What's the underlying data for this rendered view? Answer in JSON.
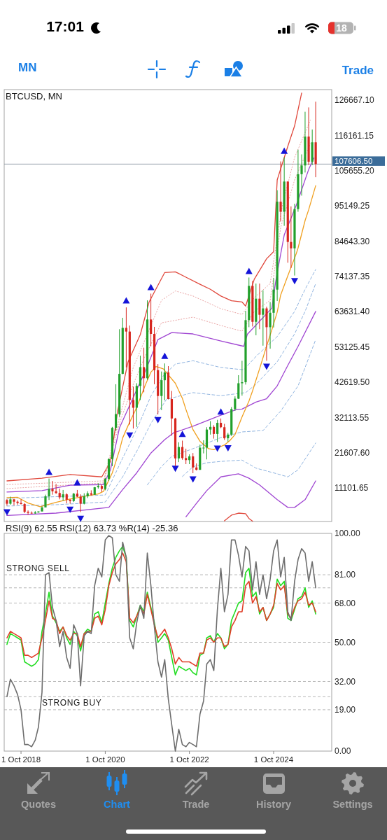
{
  "chart_data": [
    {
      "type": "other",
      "annotations": [
        "17:01",
        "18",
        "MN",
        "Trade"
      ]
    },
    {
      "type": "candlestick",
      "title": "BTCUSD, MN",
      "x": [
        "2018-06",
        "2018-07",
        "2018-08",
        "2018-09",
        "2018-10",
        "2018-11",
        "2018-12",
        "2019-01",
        "2019-02",
        "2019-03",
        "2019-04",
        "2019-05",
        "2019-06",
        "2019-07",
        "2019-08",
        "2019-09",
        "2019-10",
        "2019-11",
        "2019-12",
        "2020-01",
        "2020-02",
        "2020-03",
        "2020-04",
        "2020-05",
        "2020-06",
        "2020-07",
        "2020-08",
        "2020-09",
        "2020-10",
        "2020-11",
        "2020-12",
        "2021-01",
        "2021-02",
        "2021-03",
        "2021-04",
        "2021-05",
        "2021-06",
        "2021-07",
        "2021-08",
        "2021-09",
        "2021-10",
        "2021-11",
        "2021-12",
        "2022-01",
        "2022-02",
        "2022-03",
        "2022-04",
        "2022-05",
        "2022-06",
        "2022-07",
        "2022-08",
        "2022-09",
        "2022-10",
        "2022-11",
        "2022-12",
        "2023-01",
        "2023-02",
        "2023-03",
        "2023-04",
        "2023-05",
        "2023-06",
        "2023-07",
        "2023-08",
        "2023-09",
        "2023-10",
        "2023-11",
        "2023-12",
        "2024-01",
        "2024-02",
        "2024-03",
        "2024-04",
        "2024-05",
        "2024-06",
        "2024-07",
        "2024-08",
        "2024-09",
        "2024-10",
        "2024-11",
        "2024-12",
        "2025-01",
        "2025-02",
        "2025-03",
        "2025-04",
        "2025-05",
        "2025-06",
        "2025-07",
        "2025-08",
        "2025-09",
        "2025-10"
      ],
      "ohlc": [
        [
          7500,
          7800,
          5800,
          6400
        ],
        [
          6400,
          8500,
          6100,
          7700
        ],
        [
          7700,
          7800,
          5900,
          7000
        ],
        [
          7000,
          7400,
          6100,
          6600
        ],
        [
          6600,
          7700,
          6200,
          6300
        ],
        [
          6300,
          6600,
          3600,
          4000
        ],
        [
          4000,
          4400,
          3100,
          3700
        ],
        [
          3700,
          4100,
          3400,
          3500
        ],
        [
          3500,
          4200,
          3400,
          3800
        ],
        [
          3800,
          4100,
          3700,
          4100
        ],
        [
          4100,
          5600,
          4100,
          5300
        ],
        [
          5300,
          9100,
          5300,
          8600
        ],
        [
          8600,
          13900,
          7500,
          10800
        ],
        [
          10800,
          13200,
          9100,
          10100
        ],
        [
          10100,
          12300,
          9300,
          9600
        ],
        [
          9600,
          10900,
          7700,
          8300
        ],
        [
          8300,
          10500,
          7300,
          9200
        ],
        [
          9200,
          9500,
          6500,
          7600
        ],
        [
          7600,
          7700,
          6400,
          7200
        ],
        [
          7200,
          9600,
          6900,
          9400
        ],
        [
          9400,
          10500,
          8400,
          8500
        ],
        [
          8500,
          9200,
          3900,
          6400
        ],
        [
          6400,
          9500,
          6200,
          8600
        ],
        [
          8600,
          10100,
          8100,
          9500
        ],
        [
          9500,
          10400,
          8800,
          9100
        ],
        [
          9100,
          11400,
          9000,
          11300
        ],
        [
          11300,
          12500,
          10900,
          11700
        ],
        [
          11700,
          12100,
          9900,
          10800
        ],
        [
          10800,
          14100,
          10400,
          13800
        ],
        [
          13800,
          19900,
          13200,
          19700
        ],
        [
          19700,
          29300,
          17600,
          29000
        ],
        [
          29000,
          42000,
          28100,
          33100
        ],
        [
          33100,
          58400,
          32300,
          45100
        ],
        [
          45100,
          61800,
          45000,
          58800
        ],
        [
          58800,
          64900,
          47000,
          57700
        ],
        [
          57700,
          59500,
          30000,
          37300
        ],
        [
          37300,
          41300,
          28800,
          35000
        ],
        [
          35000,
          42300,
          29300,
          41500
        ],
        [
          41500,
          50500,
          37300,
          47100
        ],
        [
          47100,
          52900,
          39600,
          43800
        ],
        [
          43800,
          67000,
          43300,
          61300
        ],
        [
          61300,
          69000,
          53300,
          57000
        ],
        [
          57000,
          59100,
          42000,
          46200
        ],
        [
          46200,
          48000,
          33000,
          38500
        ],
        [
          38500,
          45800,
          34300,
          43200
        ],
        [
          43200,
          48200,
          37200,
          45500
        ],
        [
          45500,
          47400,
          37500,
          37600
        ],
        [
          37600,
          40000,
          26700,
          31800
        ],
        [
          31800,
          32000,
          17600,
          19900
        ],
        [
          19900,
          24700,
          18800,
          23300
        ],
        [
          23300,
          25200,
          19500,
          20000
        ],
        [
          20000,
          22800,
          18200,
          19400
        ],
        [
          19400,
          21100,
          18200,
          20500
        ],
        [
          20500,
          21500,
          15500,
          17200
        ],
        [
          17200,
          18400,
          16300,
          16500
        ],
        [
          16500,
          24000,
          16500,
          23100
        ],
        [
          23100,
          25300,
          21400,
          23100
        ],
        [
          23100,
          29200,
          19600,
          28500
        ],
        [
          28500,
          31000,
          27000,
          29300
        ],
        [
          29300,
          29800,
          25800,
          27200
        ],
        [
          27200,
          31400,
          24800,
          30500
        ],
        [
          30500,
          31800,
          28900,
          29200
        ],
        [
          29200,
          30200,
          25400,
          25900
        ],
        [
          25900,
          27500,
          24900,
          27000
        ],
        [
          27000,
          35200,
          26600,
          34600
        ],
        [
          34600,
          38400,
          34100,
          37700
        ],
        [
          37700,
          44700,
          37600,
          42300
        ],
        [
          42300,
          49000,
          38600,
          42600
        ],
        [
          42600,
          63900,
          41900,
          61100
        ],
        [
          61100,
          73800,
          59000,
          71300
        ],
        [
          71300,
          72800,
          59200,
          60600
        ],
        [
          60600,
          72000,
          56600,
          67500
        ],
        [
          67500,
          72000,
          58400,
          62700
        ],
        [
          62700,
          70000,
          53500,
          64600
        ],
        [
          64600,
          65100,
          49000,
          59000
        ],
        [
          59000,
          66500,
          52600,
          63300
        ],
        [
          63300,
          73600,
          58900,
          70200
        ],
        [
          70200,
          99800,
          66800,
          96400
        ],
        [
          96400,
          108400,
          90500,
          93400
        ],
        [
          93400,
          109600,
          89200,
          102400
        ],
        [
          102400,
          102500,
          78200,
          84400
        ],
        [
          84400,
          95000,
          76600,
          82500
        ],
        [
          82500,
          95800,
          74400,
          94200
        ],
        [
          94200,
          111900,
          93400,
          104600
        ],
        [
          104600,
          110500,
          98200,
          107200
        ],
        [
          107200,
          123200,
          105100,
          115800
        ],
        [
          115800,
          124500,
          107300,
          108300
        ],
        [
          108300,
          117900,
          107300,
          114100
        ],
        [
          114100,
          126200,
          103700,
          107606.5
        ]
      ],
      "colors": [
        "#d7261e",
        "#22a02c",
        "#d7261e",
        "#d7261e",
        "#d7261e",
        "#d7261e",
        "#d7261e",
        "#d7261e",
        "#22a02c",
        "#22a02c",
        "#22a02c",
        "#22a02c",
        "#22a02c",
        "#d7261e",
        "#d7261e",
        "#d7261e",
        "#22a02c",
        "#d7261e",
        "#d7261e",
        "#22a02c",
        "#d7261e",
        "#d7261e",
        "#22a02c",
        "#22a02c",
        "#d7261e",
        "#22a02c",
        "#22a02c",
        "#d7261e",
        "#22a02c",
        "#22a02c",
        "#22a02c",
        "#22a02c",
        "#22a02c",
        "#22a02c",
        "#d7261e",
        "#d7261e",
        "#d7261e",
        "#22a02c",
        "#22a02c",
        "#d7261e",
        "#22a02c",
        "#d7261e",
        "#d7261e",
        "#d7261e",
        "#22a02c",
        "#22a02c",
        "#d7261e",
        "#d7261e",
        "#d7261e",
        "#22a02c",
        "#d7261e",
        "#d7261e",
        "#22a02c",
        "#d7261e",
        "#d7261e",
        "#22a02c",
        "#22a02c",
        "#22a02c",
        "#22a02c",
        "#d7261e",
        "#22a02c",
        "#d7261e",
        "#d7261e",
        "#22a02c",
        "#22a02c",
        "#22a02c",
        "#22a02c",
        "#22a02c",
        "#22a02c",
        "#22a02c",
        "#d7261e",
        "#22a02c",
        "#d7261e",
        "#22a02c",
        "#d7261e",
        "#22a02c",
        "#22a02c",
        "#22a02c",
        "#d7261e",
        "#22a02c",
        "#d7261e",
        "#d7261e",
        "#22a02c",
        "#22a02c",
        "#22a02c",
        "#22a02c",
        "#d7261e",
        "#22a02c",
        "#d7261e"
      ],
      "series": [
        {
          "type": "line",
          "color": "#e0483c",
          "x": [
            "2018-06",
            "2019-04",
            "2019-12",
            "2020-09",
            "2020-11-16",
            "2021-01-16",
            "2021-04-16",
            "2021-08",
            "2021-10-16",
            "2022-03",
            "2022-06",
            "2022-09",
            "2023-01",
            "2023-04",
            "2023-07",
            "2023-10",
            "2024-01",
            "2024-02",
            "2024-04-16",
            "2024-08",
            "2024-10",
            "2024-11",
            "2025-02",
            "2025-04",
            "2025-06"
          ],
          "values": [
            13200,
            14000,
            15100,
            14400,
            19000,
            34000,
            48600,
            56800,
            66500,
            75300,
            75500,
            73900,
            71800,
            70300,
            68300,
            66900,
            66500,
            65300,
            73300,
            79400,
            81500,
            102900,
            112900,
            119000,
            128800
          ]
        },
        {
          "type": "line",
          "color": "#eaa4a4",
          "line_style": "dotted",
          "x": [
            "2018-06",
            "2020-09-16",
            "2021-02",
            "2021-06",
            "2021-09-16",
            "2022-02",
            "2022-06",
            "2022-11",
            "2023-07",
            "2024-01",
            "2024-04-16",
            "2024-09",
            "2024-12-16",
            "2025-04",
            "2025-08-16"
          ],
          "values": [
            12100,
            13200,
            32000,
            47000,
            55700,
            67000,
            69800,
            68300,
            64500,
            62800,
            67800,
            72000,
            95400,
            109600,
            120700
          ]
        },
        {
          "type": "line",
          "color": "#eaa4a4",
          "line_style": "dotted",
          "x": [
            "2018-06",
            "2020-09-16",
            "2021-02",
            "2021-06",
            "2021-09-16",
            "2022-02",
            "2022-11",
            "2023-07",
            "2024-01",
            "2024-04-16",
            "2024-09",
            "2024-12",
            "2025-04",
            "2025-08-16"
          ],
          "values": [
            10900,
            12600,
            30300,
            42000,
            50700,
            60300,
            62000,
            59500,
            57800,
            63700,
            67000,
            88700,
            102900,
            113700
          ]
        },
        {
          "type": "line",
          "color": "#a046d2",
          "x": [
            "2018-06",
            "2019-04",
            "2019-12",
            "2020-09-16",
            "2020-11-16",
            "2021-02",
            "2021-06-16",
            "2021-09-16",
            "2022-01",
            "2022-05",
            "2022-11",
            "2023-07",
            "2024-01-16",
            "2024-02-16",
            "2024-09-16",
            "2024-10-16",
            "2024-11-16",
            "2025-01",
            "2025-04-16",
            "2025-08",
            "2025-09-16"
          ],
          "values": [
            9900,
            10300,
            11900,
            12100,
            16600,
            29000,
            39200,
            46100,
            55300,
            57400,
            57000,
            54900,
            53300,
            56900,
            64700,
            72000,
            78000,
            86500,
            95400,
            106000,
            109400
          ]
        },
        {
          "type": "line",
          "color": "#90b4e0",
          "line_style": "dashed",
          "x": [
            "2018-06",
            "2019-08",
            "2020-10",
            "2021-03",
            "2021-07-16",
            "2021-11",
            "2022-02-16",
            "2022-06",
            "2022-11",
            "2023-07",
            "2024-01-16",
            "2024-05",
            "2024-11",
            "2025-04",
            "2025-07",
            "2025-10"
          ],
          "values": [
            8000,
            8500,
            9000,
            20000,
            29700,
            38500,
            44500,
            48000,
            49000,
            47000,
            46300,
            50300,
            56200,
            63700,
            70300,
            76200
          ]
        },
        {
          "type": "line",
          "color": "#90b4e0",
          "line_style": "dashed",
          "x": [
            "2018-06",
            "2019-08",
            "2020-10",
            "2021-03",
            "2021-07",
            "2021-11",
            "2022-03-16",
            "2022-11",
            "2023-07",
            "2024-02",
            "2024-05",
            "2024-11",
            "2025-04",
            "2025-07",
            "2025-10"
          ],
          "values": [
            5700,
            6100,
            6900,
            14400,
            22000,
            30300,
            37500,
            39500,
            38600,
            39500,
            42000,
            48700,
            57000,
            63700,
            72000
          ]
        },
        {
          "type": "line",
          "color": "#a046d2",
          "x": [
            "2018-06",
            "2019-08",
            "2020-11",
            "2021-03",
            "2021-07",
            "2021-11",
            "2022-03",
            "2022-05-16",
            "2022-11",
            "2023-07",
            "2023-11-16",
            "2024-01",
            "2024-05",
            "2024-08",
            "2024-11",
            "2025-02",
            "2025-05",
            "2025-10"
          ],
          "values": [
            2900,
            3600,
            5300,
            10600,
            15600,
            21500,
            25500,
            27500,
            29500,
            32800,
            34500,
            34600,
            36700,
            37700,
            41500,
            47600,
            53300,
            63700
          ]
        },
        {
          "type": "line",
          "color": "#90b4e0",
          "line_style": "dashed",
          "x": [
            "2021-10",
            "2022-02",
            "2022-05",
            "2022-11",
            "2023-07",
            "2024-01",
            "2024-07",
            "2024-12",
            "2025-05",
            "2025-10"
          ],
          "values": [
            12000,
            17500,
            20500,
            22800,
            26100,
            27800,
            28200,
            34000,
            41500,
            55300
          ]
        },
        {
          "type": "line",
          "color": "#90b4e0",
          "line_style": "dashed",
          "x": [
            "2022-08",
            "2022-11",
            "2023-03",
            "2023-07",
            "2024-01",
            "2024-05",
            "2024-11",
            "2025-02",
            "2025-05",
            "2025-10"
          ],
          "values": [
            14500,
            17400,
            18600,
            19000,
            19400,
            17000,
            15300,
            14400,
            16500,
            24500
          ]
        },
        {
          "type": "line",
          "color": "#a046d2",
          "x": [
            "2022-09",
            "2022-12",
            "2023-03",
            "2023-07",
            "2023-12",
            "2024-03",
            "2024-06",
            "2024-11",
            "2025-02",
            "2025-04",
            "2025-07",
            "2025-10"
          ],
          "values": [
            2500,
            6500,
            10300,
            14400,
            15300,
            14000,
            12000,
            7600,
            5300,
            5300,
            7600,
            13200
          ]
        },
        {
          "type": "line",
          "color": "#e0483c",
          "x": [
            "2023-08",
            "2023-10",
            "2023-12",
            "2024-02",
            "2024-03",
            "2024-04"
          ],
          "values": [
            1300,
            3000,
            3600,
            3400,
            2000,
            1200
          ]
        },
        {
          "type": "line",
          "color": "#f0a020",
          "x": [
            "2018-06",
            "2018-09",
            "2018-12",
            "2019-03-16",
            "2019-08",
            "2019-11-16",
            "2020-04-16",
            "2020-08",
            "2020-09-16",
            "2020-12",
            "2021-02",
            "2021-03",
            "2021-04-16",
            "2021-06-16",
            "2021-07-16",
            "2021-09-16",
            "2021-11",
            "2021-12-16",
            "2022-02-16",
            "2022-06",
            "2022-08",
            "2022-09",
            "2022-11",
            "2023-01",
            "2023-03-16",
            "2023-05",
            "2023-06",
            "2023-08",
            "2023-09-16",
            "2023-11",
            "2024-01",
            "2024-03",
            "2024-04",
            "2024-06",
            "2024-07-16",
            "2024-09-16",
            "2024-11",
            "2024-12",
            "2025-02",
            "2025-04-16",
            "2025-05",
            "2025-07",
            "2025-08",
            "2025-10"
          ],
          "values": [
            8200,
            8300,
            6600,
            5500,
            6800,
            7700,
            8700,
            9300,
            10100,
            15600,
            22300,
            26000,
            29600,
            34000,
            36500,
            42000,
            45600,
            47300,
            46600,
            42300,
            37800,
            34500,
            28500,
            25000,
            22800,
            22500,
            23000,
            23900,
            25200,
            27000,
            32300,
            37000,
            40000,
            46600,
            51600,
            58300,
            63500,
            68600,
            74300,
            81000,
            82600,
            90800,
            94000,
            101200
          ]
        },
        {
          "type": "scatter",
          "color": "#1414d8",
          "marker": "triangle",
          "x": [
            "2019-06",
            "2020-02",
            "2021-04",
            "2021-11",
            "2022-03",
            "2022-08",
            "2023-07",
            "2024-03",
            "2025-01"
          ],
          "values": [
            15900,
            12800,
            67000,
            71000,
            50500,
            27200,
            33900,
            75800,
            111600
          ]
        },
        {
          "type": "scatter",
          "color": "#1414d8",
          "marker": "triangle",
          "x": [
            "2018-06",
            "2019-12",
            "2020-03",
            "2021-05",
            "2022-01",
            "2022-06",
            "2022-11",
            "2023-06",
            "2023-09",
            "2024-08",
            "2025-04"
          ],
          "values": [
            3800,
            4600,
            1900,
            26700,
            31300,
            16800,
            13600,
            22800,
            22900,
            47200,
            72700
          ]
        }
      ],
      "xlim": [
        "2018-05-08",
        "2026-02-17"
      ],
      "ylim": [
        1100,
        129800
      ],
      "yticks": [
        {
          "value": 11101.65,
          "label": "11101.65"
        },
        {
          "value": 21607.6,
          "label": "21607.60"
        },
        {
          "value": 32113.55,
          "label": "32113.55"
        },
        {
          "value": 42619.5,
          "label": "42619.50"
        },
        {
          "value": 53125.45,
          "label": "53125.45"
        },
        {
          "value": 63631.4,
          "label": "63631.40"
        },
        {
          "value": 74137.35,
          "label": "74137.35"
        },
        {
          "value": 84643.3,
          "label": "84643.30"
        },
        {
          "value": 95149.25,
          "label": "95149.25"
        },
        {
          "value": 105655.2,
          "label": "105655.20"
        },
        {
          "value": 116161.15,
          "label": "116161.15"
        },
        {
          "value": 126667.1,
          "label": "126667.10"
        }
      ],
      "tick_labels": "y",
      "ref_lines": [
        {
          "axis": "y",
          "value": 107606.5,
          "label": "107606.50",
          "color": "#8f9ba6"
        }
      ]
    },
    {
      "type": "line",
      "title": "RSI(9) 62.55 RSI(12) 63.73 %R(14) -25.36",
      "x": [
        "2018-06",
        "2018-07",
        "2018-08",
        "2018-09",
        "2018-10",
        "2018-11",
        "2018-12",
        "2019-01",
        "2019-02",
        "2019-03",
        "2019-04",
        "2019-05",
        "2019-06",
        "2019-07",
        "2019-08",
        "2019-09",
        "2019-10",
        "2019-11",
        "2019-12",
        "2020-01",
        "2020-02",
        "2020-03",
        "2020-04",
        "2020-05",
        "2020-06",
        "2020-07",
        "2020-08",
        "2020-09",
        "2020-10",
        "2020-11",
        "2020-12",
        "2021-01",
        "2021-02",
        "2021-03",
        "2021-04",
        "2021-05",
        "2021-06",
        "2021-07",
        "2021-08",
        "2021-09",
        "2021-10",
        "2021-11",
        "2021-12",
        "2022-01",
        "2022-02",
        "2022-03",
        "2022-04",
        "2022-05",
        "2022-06",
        "2022-07",
        "2022-08",
        "2022-09",
        "2022-10",
        "2022-11",
        "2022-12",
        "2023-01",
        "2023-02",
        "2023-03",
        "2023-04",
        "2023-05",
        "2023-06",
        "2023-07",
        "2023-08",
        "2023-09",
        "2023-10",
        "2023-11",
        "2023-12",
        "2024-01",
        "2024-02",
        "2024-03",
        "2024-04",
        "2024-05",
        "2024-06",
        "2024-07",
        "2024-08",
        "2024-09",
        "2024-10",
        "2024-11",
        "2024-12",
        "2025-01",
        "2025-02",
        "2025-03",
        "2025-04",
        "2025-05",
        "2025-06",
        "2025-07",
        "2025-08",
        "2025-09",
        "2025-10"
      ],
      "series": [
        {
          "color": "#22dd22",
          "values": [
            49,
            54,
            53,
            52,
            51,
            41,
            40,
            39,
            40,
            42,
            55,
            63,
            73,
            62,
            59,
            55,
            57,
            52,
            49,
            55,
            53,
            46,
            54,
            56,
            55,
            63,
            64,
            59,
            68,
            77,
            84,
            89,
            92,
            94,
            89,
            60,
            57,
            62,
            67,
            64,
            73,
            66,
            59,
            50,
            52,
            54,
            51,
            43,
            35,
            39,
            38,
            37,
            38,
            36,
            35,
            44,
            45,
            52,
            53,
            50,
            54,
            52,
            47,
            49,
            60,
            64,
            68,
            69,
            82,
            84,
            71,
            73,
            63,
            66,
            60,
            63,
            66,
            79,
            76,
            78,
            61,
            60,
            65,
            70,
            71,
            75,
            66,
            69,
            63
          ]
        },
        {
          "color": "#e0402a",
          "values": [
            52,
            55,
            54,
            53,
            52,
            44,
            44,
            43,
            44,
            45,
            52,
            60,
            69,
            61,
            60,
            54,
            57,
            53,
            51,
            54,
            54,
            48,
            54,
            55,
            55,
            61,
            62,
            58,
            65,
            76,
            82,
            86,
            88,
            91,
            87,
            61,
            59,
            62,
            66,
            63,
            72,
            65,
            58,
            52,
            54,
            56,
            52,
            47,
            40,
            43,
            41,
            41,
            41,
            40,
            39,
            45,
            45,
            51,
            52,
            50,
            52,
            52,
            48,
            49,
            57,
            60,
            64,
            64,
            76,
            78,
            68,
            71,
            64,
            66,
            60,
            63,
            67,
            77,
            74,
            76,
            63,
            61,
            66,
            69,
            70,
            73,
            67,
            68,
            64
          ]
        },
        {
          "color": "#6e6e6e",
          "values": [
            25,
            33,
            30,
            26,
            19,
            3,
            3,
            2,
            5,
            11,
            27,
            81,
            82,
            66,
            60,
            48,
            55,
            43,
            38,
            58,
            54,
            30,
            53,
            55,
            54,
            76,
            84,
            80,
            97,
            99,
            98,
            81,
            78,
            96,
            89,
            52,
            47,
            59,
            67,
            61,
            91,
            76,
            57,
            41,
            34,
            42,
            24,
            12,
            0,
            10,
            3,
            2,
            4,
            3,
            2,
            17,
            23,
            40,
            42,
            37,
            65,
            84,
            64,
            72,
            97,
            97,
            90,
            80,
            94,
            92,
            74,
            87,
            72,
            81,
            70,
            79,
            92,
            97,
            80,
            89,
            64,
            60,
            78,
            88,
            93,
            91,
            78,
            87,
            75
          ]
        }
      ],
      "xlim": [
        "2018-05-08",
        "2026-02-17"
      ],
      "xticks": [
        {
          "value": "2018-10-01",
          "label": "1 Oct 2018"
        },
        {
          "value": "2020-10-01",
          "label": "1 Oct 2020"
        },
        {
          "value": "2022-10-01",
          "label": "1 Oct 2022"
        },
        {
          "value": "2024-10-01",
          "label": "1 Oct 2024"
        }
      ],
      "ylim": [
        0,
        100
      ],
      "yticks": [
        {
          "value": 0,
          "label": "0.00"
        },
        {
          "value": 19,
          "label": "19.00"
        },
        {
          "value": 32,
          "label": "32.00"
        },
        {
          "value": 50,
          "label": "50.00"
        },
        {
          "value": 68,
          "label": "68.00"
        },
        {
          "value": 81,
          "label": "81.00"
        },
        {
          "value": 100,
          "label": "100.00"
        }
      ],
      "ref_lines": [
        {
          "axis": "y",
          "value": 81,
          "label": "STRONG SELL",
          "color": "#b5b5b5",
          "line_style": "dashed"
        },
        {
          "axis": "y",
          "value": 75,
          "color": "#b5b5b5",
          "line_style": "dashed"
        },
        {
          "axis": "y",
          "value": 68,
          "color": "#b5b5b5",
          "line_style": "dashed"
        },
        {
          "axis": "y",
          "value": 50,
          "color": "#b5b5b5",
          "line_style": "dashed"
        },
        {
          "axis": "y",
          "value": 32,
          "color": "#b5b5b5",
          "line_style": "dashed"
        },
        {
          "axis": "y",
          "value": 25,
          "color": "#b5b5b5",
          "line_style": "dashed"
        },
        {
          "axis": "y",
          "value": 19,
          "label": "STRONG BUY",
          "color": "#b5b5b5",
          "line_style": "dashed"
        }
      ]
    },
    {
      "type": "other",
      "annotations": [
        "Quotes",
        "Chart",
        "Trade",
        "History",
        "Settings"
      ]
    }
  ]
}
